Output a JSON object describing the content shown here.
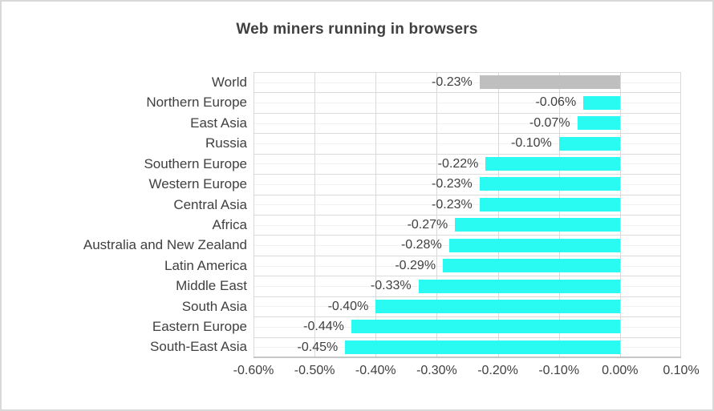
{
  "chart_data": {
    "type": "bar",
    "orientation": "horizontal",
    "title": "Web miners running in browsers",
    "categories": [
      "World",
      "Northern Europe",
      "East Asia",
      "Russia",
      "Southern Europe",
      "Western Europe",
      "Central Asia",
      "Africa",
      "Australia and New Zealand",
      "Latin America",
      "Middle East",
      "South Asia",
      "Eastern Europe",
      "South-East Asia"
    ],
    "values": [
      -0.23,
      -0.06,
      -0.07,
      -0.1,
      -0.22,
      -0.23,
      -0.23,
      -0.27,
      -0.28,
      -0.29,
      -0.33,
      -0.4,
      -0.44,
      -0.45
    ],
    "data_labels": [
      "-0.23%",
      "-0.06%",
      "-0.07%",
      "-0.10%",
      "-0.22%",
      "-0.23%",
      "-0.23%",
      "-0.27%",
      "-0.28%",
      "-0.29%",
      "-0.33%",
      "-0.40%",
      "-0.44%",
      "-0.45%"
    ],
    "xlabel": "",
    "ylabel": "",
    "xlim": [
      -0.6,
      0.1
    ],
    "x_tick_values": [
      -0.6,
      -0.5,
      -0.4,
      -0.3,
      -0.2,
      -0.1,
      0.0,
      0.1
    ],
    "x_tick_labels": [
      "-0.60%",
      "-0.50%",
      "-0.40%",
      "-0.30%",
      "-0.20%",
      "-0.10%",
      "0.00%",
      "0.10%"
    ],
    "grid": "vertical major gridlines at each x tick; horizontal lines at category boundaries (major) and category midpoints (minor)",
    "legend": "none",
    "highlight_category": "World"
  },
  "colors": {
    "bar_default": "#29faf2",
    "bar_highlight": "#bfbfbf",
    "text": "#404040",
    "gridline_major": "#dbdbdb",
    "gridline_minor": "#f2f2f2",
    "axis_line": "#c6c6c6",
    "frame_border": "#d9d9d9",
    "background": "#ffffff"
  }
}
